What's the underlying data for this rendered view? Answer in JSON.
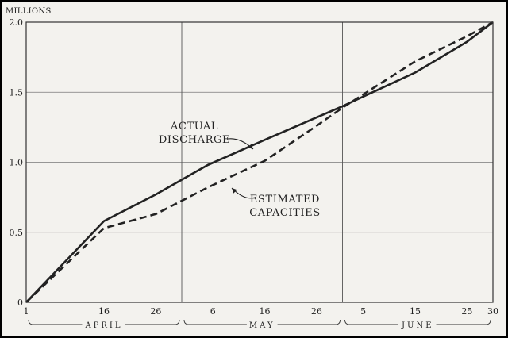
{
  "chart_data": {
    "type": "line",
    "ylabel": "MILLIONS",
    "ylim": [
      0,
      2.0
    ],
    "y_ticks": [
      {
        "value": 0,
        "label": "0"
      },
      {
        "value": 0.5,
        "label": "0.5"
      },
      {
        "value": 1.0,
        "label": "1.0"
      },
      {
        "value": 1.5,
        "label": "1.5"
      },
      {
        "value": 2.0,
        "label": "2.0"
      }
    ],
    "xlim": [
      1,
      91
    ],
    "x_ticks": [
      {
        "value": 1,
        "label": "1"
      },
      {
        "value": 16,
        "label": "16"
      },
      {
        "value": 26,
        "label": "26"
      },
      {
        "value": 37,
        "label": "6"
      },
      {
        "value": 47,
        "label": "16"
      },
      {
        "value": 57,
        "label": "26"
      },
      {
        "value": 66,
        "label": "5"
      },
      {
        "value": 76,
        "label": "15"
      },
      {
        "value": 86,
        "label": "25"
      },
      {
        "value": 91,
        "label": "30"
      }
    ],
    "x_gridlines": [
      31,
      62
    ],
    "months": [
      {
        "label": "APRIL",
        "start": 1,
        "end": 31
      },
      {
        "label": "MAY",
        "start": 31,
        "end": 62
      },
      {
        "label": "JUNE",
        "start": 62,
        "end": 91
      }
    ],
    "grid": true,
    "series": [
      {
        "name": "ACTUAL DISCHARGE",
        "style": "solid",
        "color": "#222222",
        "x": [
          1,
          16,
          26,
          36,
          47,
          57,
          62,
          76,
          86,
          91
        ],
        "y": [
          0,
          0.58,
          0.77,
          0.98,
          1.16,
          1.32,
          1.4,
          1.64,
          1.86,
          2.0
        ]
      },
      {
        "name": "ESTIMATED CAPACITIES",
        "style": "dashed",
        "color": "#222222",
        "x": [
          1,
          16,
          26,
          36,
          47,
          57,
          62,
          76,
          86,
          91
        ],
        "y": [
          0,
          0.53,
          0.63,
          0.82,
          1.01,
          1.26,
          1.39,
          1.72,
          1.9,
          2.0
        ]
      }
    ],
    "annotations": [
      {
        "lines": [
          "ACTUAL",
          "DISCHARGE"
        ],
        "series": 0
      },
      {
        "lines": [
          "ESTIMATED",
          "CAPACITIES"
        ],
        "series": 1
      }
    ]
  }
}
